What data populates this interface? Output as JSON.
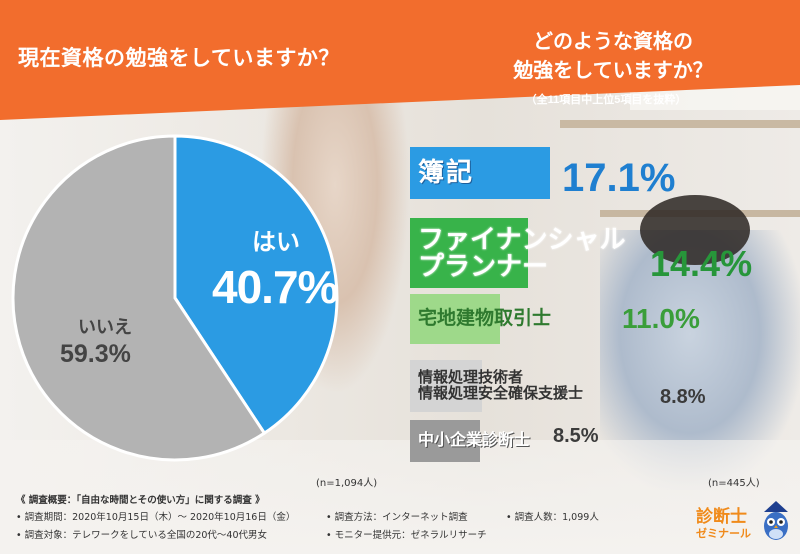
{
  "colors": {
    "banner": "#f26d2d",
    "yes": "#2b9be3",
    "no": "#b3b3b3",
    "bar1": "#2b9be3",
    "bar2": "#38b34a",
    "bar3": "#9ed98a",
    "bar4": "#d4d4d4",
    "bar5": "#9a9a9a",
    "pct1": "#1f7fd0",
    "pct2": "#27963a",
    "pct3": "#3a9e3a",
    "pct4": "#3b3b3b",
    "logo": "#f08a1a"
  },
  "left_title": "現在資格の勉強をしていますか？",
  "right_title": {
    "line1": "どのような資格の",
    "line2": "勉強をしていますか？",
    "sub": "（全11項目中上位5項目を抜粋）"
  },
  "chart_data": [
    {
      "type": "pie",
      "title": "現在資格の勉強をしていますか？",
      "slices": [
        {
          "label": "はい",
          "value": 40.7,
          "display": "40.7%"
        },
        {
          "label": "いいえ",
          "value": 59.3,
          "display": "59.3%"
        }
      ],
      "note": "(n=1,094人)"
    },
    {
      "type": "bar",
      "title": "どのような資格の勉強をしていますか？",
      "subtitle": "（全11項目中上位5項目を抜粋）",
      "categories": [
        "簿記",
        "ファイナンシャルプランナー",
        "宅地建物取引士",
        "情報処理技術者 情報処理安全確保支援士",
        "中小企業診断士"
      ],
      "values": [
        17.1,
        14.4,
        11.0,
        8.8,
        8.5
      ],
      "note": "(n=445人)"
    }
  ],
  "bars": [
    {
      "line1": "簿記",
      "line2": "",
      "pct": "17.1%"
    },
    {
      "line1": "ファイナンシャル",
      "line2": "プランナー",
      "pct": "14.4%"
    },
    {
      "line1": "宅地建物取引士",
      "line2": "",
      "pct": "11.0%"
    },
    {
      "line1": "情報処理技術者",
      "line2": "情報処理安全確保支援士",
      "pct": "8.8%"
    },
    {
      "line1": "中小企業診断士",
      "line2": "",
      "pct": "8.5%"
    }
  ],
  "survey": {
    "header": "《 調査概要：「自由な時間とその使い方」に関する調査 》",
    "period": "• 調査期間：2020年10月15日（木）～ 2020年10月16日（金）",
    "method": "• 調査方法：インターネット調査",
    "people": "• 調査人数：1,099人",
    "target": "• 調査対象：テレワークをしている全国の20代～40代男女",
    "monitor": "• モニター提供元：ゼネラルリサーチ"
  },
  "logo": {
    "line1": "診断士",
    "line2": "ゼミナール"
  }
}
